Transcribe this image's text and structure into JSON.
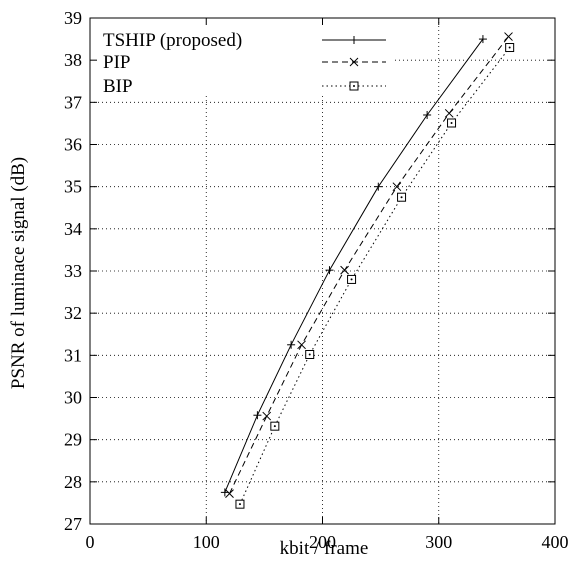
{
  "chart_data": {
    "type": "line",
    "xlabel": "kbit / frame",
    "ylabel": "PSNR of luminace signal (dB)",
    "xlim": [
      0,
      400
    ],
    "ylim": [
      27,
      39
    ],
    "xticks": [
      0,
      100,
      200,
      300,
      400
    ],
    "yticks": [
      27,
      28,
      29,
      30,
      31,
      32,
      33,
      34,
      35,
      36,
      37,
      38,
      39
    ],
    "grid": true,
    "legend_position": "top-left",
    "series": [
      {
        "name": "TSHIP (proposed)",
        "line_style": "solid",
        "marker": "plus",
        "points": [
          {
            "x": 116,
            "y": 27.75
          },
          {
            "x": 144,
            "y": 29.58
          },
          {
            "x": 173,
            "y": 31.25
          },
          {
            "x": 206,
            "y": 33.02
          },
          {
            "x": 248,
            "y": 35.0
          },
          {
            "x": 290,
            "y": 36.7
          },
          {
            "x": 338,
            "y": 38.5
          }
        ]
      },
      {
        "name": "PIP",
        "line_style": "dashed",
        "marker": "x",
        "points": [
          {
            "x": 120,
            "y": 27.72
          },
          {
            "x": 152,
            "y": 29.56
          },
          {
            "x": 182,
            "y": 31.25
          },
          {
            "x": 219,
            "y": 33.02
          },
          {
            "x": 264,
            "y": 35.0
          },
          {
            "x": 309,
            "y": 36.74
          },
          {
            "x": 360,
            "y": 38.56
          }
        ]
      },
      {
        "name": "BIP",
        "line_style": "dotted",
        "marker": "square-dot",
        "points": [
          {
            "x": 129,
            "y": 27.47
          },
          {
            "x": 159,
            "y": 29.32
          },
          {
            "x": 189,
            "y": 31.02
          },
          {
            "x": 225,
            "y": 32.8
          },
          {
            "x": 268,
            "y": 34.75
          },
          {
            "x": 311,
            "y": 36.51
          },
          {
            "x": 361,
            "y": 38.3
          }
        ]
      }
    ]
  }
}
